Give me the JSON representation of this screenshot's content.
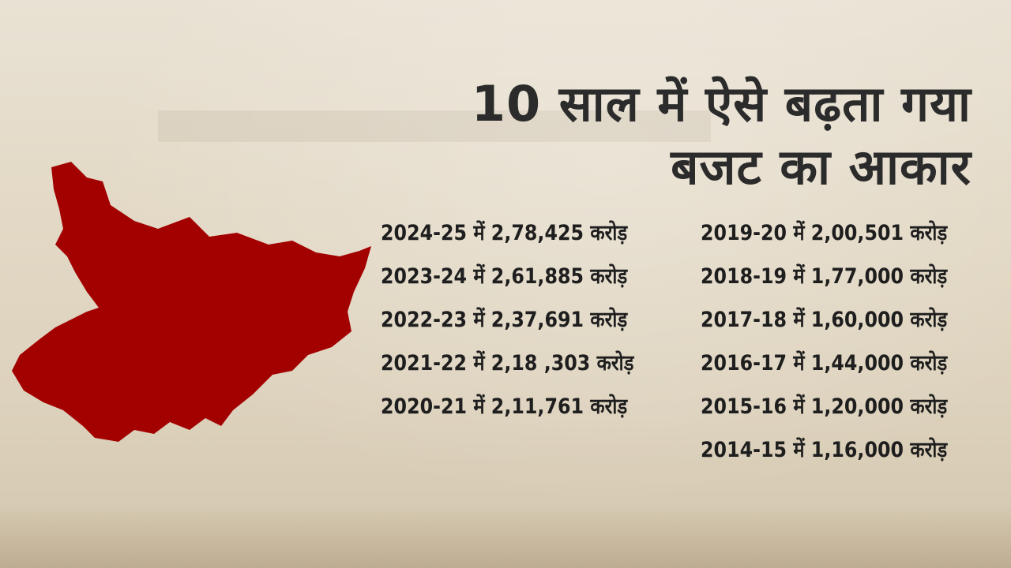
{
  "title": {
    "lines": [
      "10 साल में ऐसे बढ़ता गया",
      "बजट का आकार"
    ]
  },
  "columns": [
    {
      "entries": [
        "2024-25 में 2,78,425 करोड़",
        "2023-24 में 2,61,885 करोड़",
        "2022-23 में 2,37,691 करोड़",
        "2021-22 में 2,18 ,303 करोड़",
        "2020-21 में 2,11,761 करोड़"
      ]
    },
    {
      "entries": [
        "2019-20 में 2,00,501 करोड़",
        "2018-19 में 1,77,000 करोड़",
        "2017-18 में 1,60,000 करोड़",
        "2016-17 में 1,44,000 करोड़",
        "2015-16 में 1,20,000 करोड़",
        "2014-15 में 1,16,000 करोड़"
      ]
    }
  ]
}
